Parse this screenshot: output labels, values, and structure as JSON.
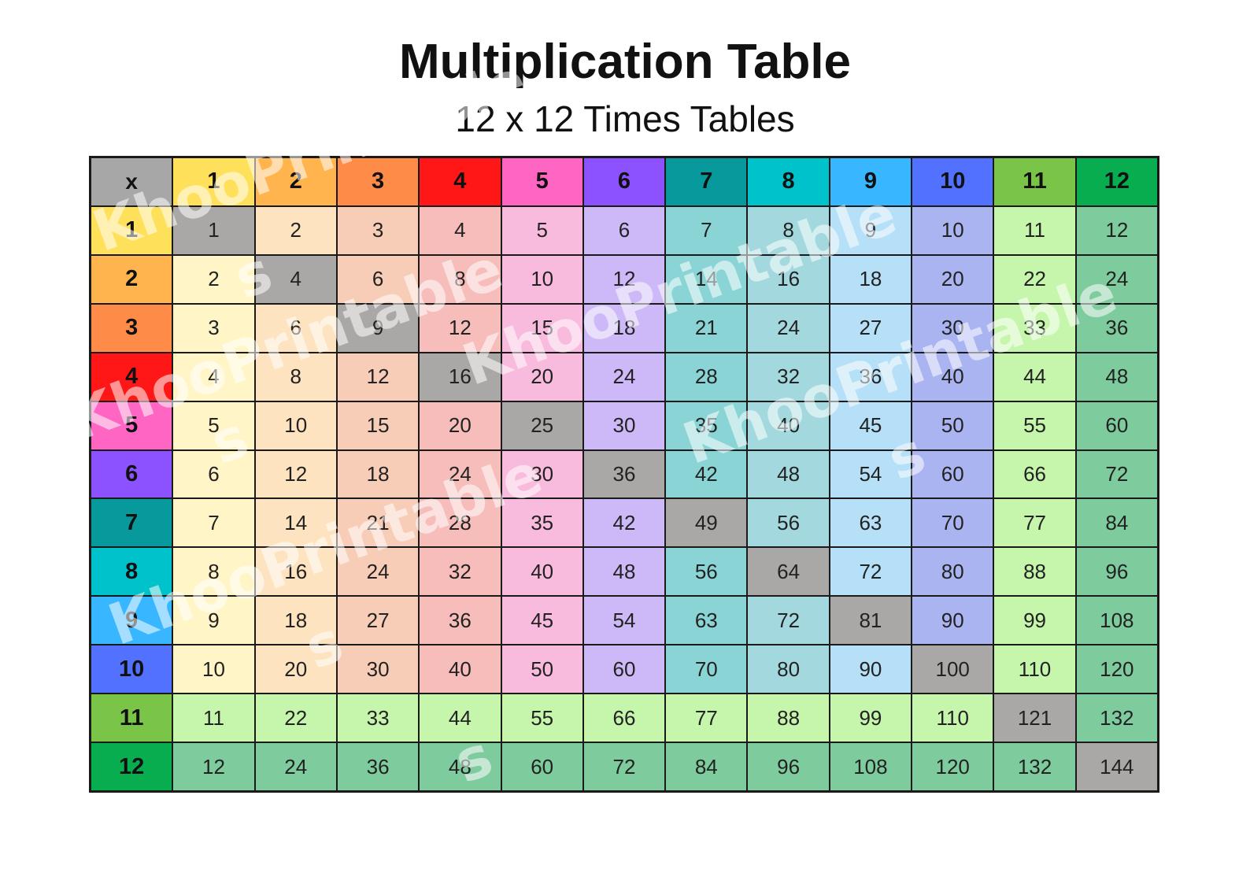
{
  "title": "Multiplication Table",
  "subtitle": "12 x 12 Times Tables",
  "table": {
    "corner_label": "x",
    "size": 12,
    "corner_color": "#a7a7a7",
    "diagonal_color": "#aaa8a7",
    "header_colors": [
      "#ffe05a",
      "#ffb44d",
      "#ff8b49",
      "#ff1616",
      "#ff66c4",
      "#8c52ff",
      "#07999b",
      "#00c2cb",
      "#38b6ff",
      "#5271ff",
      "#7ac547",
      "#07ad4f"
    ],
    "column_tints": [
      "#fff5c7",
      "#fde3bf",
      "#f8cdb8",
      "#f7bdba",
      "#f9bbdd",
      "#cdb9f7",
      "#8bd4d6",
      "#a3d9de",
      "#b5e0f7",
      "#aab4f1",
      "#c6f5ac",
      "#7ecb9d"
    ],
    "row_tint_row_11": "#c6f5ac",
    "row_tint_row_12": "#7ecb9d"
  },
  "watermark": {
    "lines": [
      {
        "text": "KhooPrintable",
        "suffix": "s"
      },
      {
        "text": "KhooPrintable",
        "suffix": "s"
      },
      {
        "text": "KhooPrintable",
        "suffix": "s"
      },
      {
        "text": "KhooPrintable",
        "suffix": "s"
      },
      {
        "text": "KhooPrintable",
        "suffix": "s"
      }
    ]
  }
}
